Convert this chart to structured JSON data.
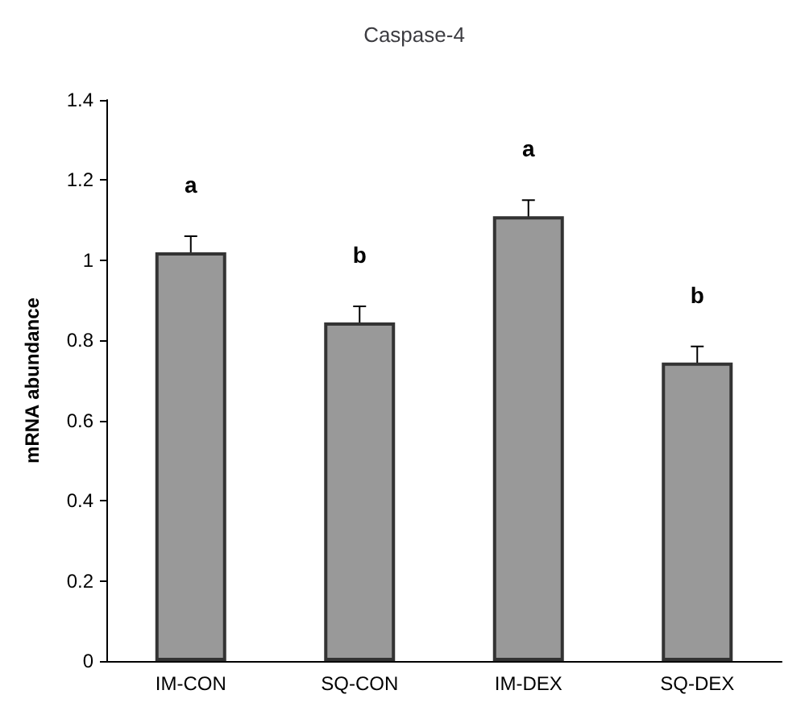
{
  "chart_data": {
    "type": "bar",
    "title": "Caspase-4",
    "ylabel": "mRNA abundance",
    "categories": [
      "IM-CON",
      "SQ-CON",
      "IM-DEX",
      "SQ-DEX"
    ],
    "values": [
      1.02,
      0.845,
      1.11,
      0.745
    ],
    "errors": [
      0.04,
      0.04,
      0.04,
      0.04
    ],
    "color": "#999999",
    "ylim": [
      0,
      1.4
    ],
    "yticks": [
      0,
      0.2,
      0.4,
      0.6,
      0.8,
      1,
      1.2,
      1.4
    ],
    "grid": false,
    "annotations": [
      "a",
      "b",
      "a",
      "b"
    ]
  }
}
